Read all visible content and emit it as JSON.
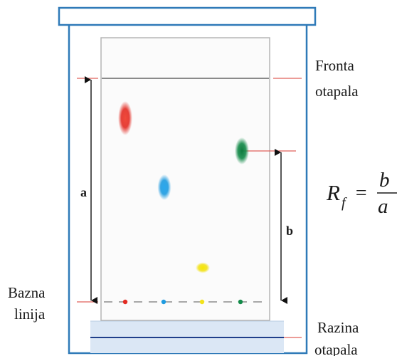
{
  "labels": {
    "solvent_front_line1": "Fronta",
    "solvent_front_line2": "otapala",
    "baseline_line1": "Bazna",
    "baseline_line2": "linija",
    "solvent_level_line1": "Razina",
    "solvent_level_line2": "otapala",
    "dimension_a": "a",
    "dimension_b": "b"
  },
  "formula": {
    "lhs": "R",
    "subscript": "f",
    "equals": "=",
    "numerator": "b",
    "denominator": "a"
  },
  "colors": {
    "jar_outline": "#2f7ab8",
    "plate_border": "#b5b5b5",
    "marker_line": "#e0615b",
    "front_line": "#8a8a8a",
    "solvent_fill": "#dbe7f5",
    "solvent_surface": "#1f3f8a",
    "spot_red": "#e32b23",
    "spot_blue": "#1e9be0",
    "spot_yellow": "#f2e21c",
    "spot_green": "#128a48"
  }
}
